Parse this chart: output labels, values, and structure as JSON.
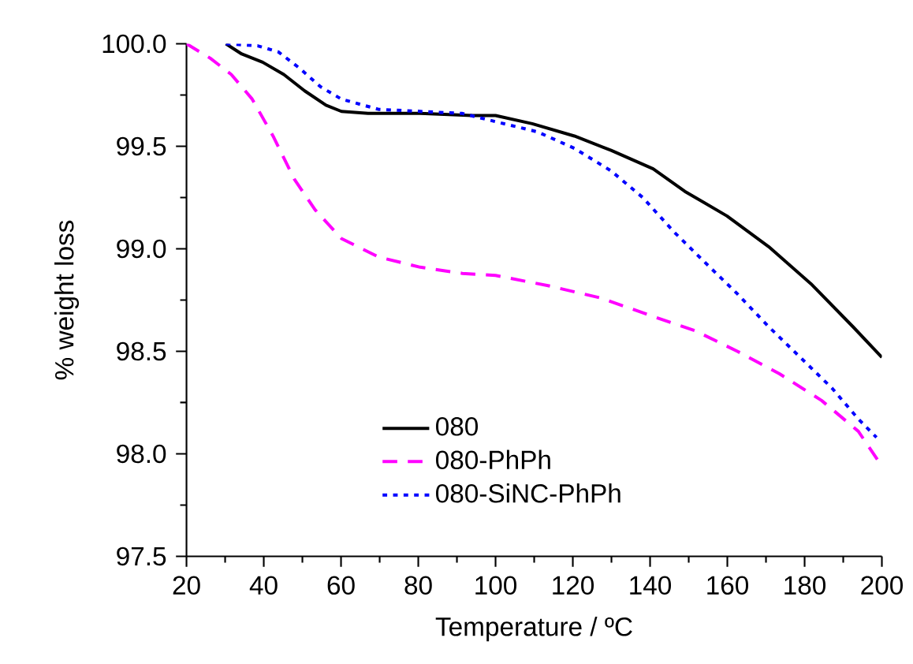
{
  "chart_data": {
    "type": "line",
    "xlabel": "Temperature / ºC",
    "ylabel": "% weight loss",
    "xlim": [
      20,
      200
    ],
    "ylim": [
      97.5,
      100.0
    ],
    "xticks": [
      20,
      40,
      60,
      80,
      100,
      120,
      140,
      160,
      180,
      200
    ],
    "yticks": [
      {
        "value": 97.5,
        "label": "97.5"
      },
      {
        "value": 98.0,
        "label": "98.0"
      },
      {
        "value": 98.5,
        "label": "98.5"
      },
      {
        "value": 99.0,
        "label": "99.0"
      },
      {
        "value": 99.5,
        "label": "99.5"
      },
      {
        "value": 100.0,
        "label": "100.0"
      }
    ],
    "legend": "bottom",
    "grid": false,
    "marker": "none",
    "series": [
      {
        "name": "080",
        "color": "#000000",
        "line_style": "solid",
        "x": [
          30.2,
          34.3,
          39.7,
          45.2,
          50.6,
          56.1,
          60.1,
          67,
          80.5,
          94,
          100,
          109.5,
          120.4,
          129.9,
          140.8,
          149,
          159.9,
          170.7,
          181.6,
          192.5,
          200
        ],
        "values": [
          100.0,
          99.95,
          99.91,
          99.85,
          99.77,
          99.7,
          99.67,
          99.66,
          99.66,
          99.65,
          99.65,
          99.61,
          99.55,
          99.48,
          99.39,
          99.28,
          99.16,
          99.01,
          98.83,
          98.62,
          98.47
        ]
      },
      {
        "name": "080-PhPh",
        "color": "#ff00ff",
        "line_style": "dashed",
        "x": [
          20,
          26.1,
          31.6,
          37,
          42.4,
          47.9,
          53.3,
          60.1,
          69.7,
          80.5,
          91.4,
          100,
          113.6,
          127.2,
          140.8,
          151.7,
          162.6,
          173.5,
          184.4,
          193.9,
          200
        ],
        "values": [
          100.0,
          99.93,
          99.85,
          99.73,
          99.55,
          99.34,
          99.19,
          99.05,
          98.96,
          98.91,
          98.88,
          98.87,
          98.82,
          98.76,
          98.67,
          98.6,
          98.5,
          98.39,
          98.26,
          98.11,
          97.94
        ]
      },
      {
        "name": "080-SiNC-PhPh",
        "color": "#0000ff",
        "line_style": "dotted",
        "x": [
          30.2,
          38.4,
          43.8,
          49.3,
          54.7,
          60.1,
          69.7,
          80.5,
          91.4,
          100,
          110.9,
          120.4,
          129.9,
          138.1,
          146.3,
          154.4,
          162.6,
          170.7,
          178.9,
          187.1,
          193.9,
          198.6
        ],
        "values": [
          100.0,
          99.99,
          99.96,
          99.88,
          99.79,
          99.73,
          99.68,
          99.67,
          99.66,
          99.62,
          99.57,
          99.49,
          99.38,
          99.25,
          99.08,
          98.93,
          98.78,
          98.62,
          98.47,
          98.32,
          98.17,
          98.08
        ]
      }
    ]
  }
}
